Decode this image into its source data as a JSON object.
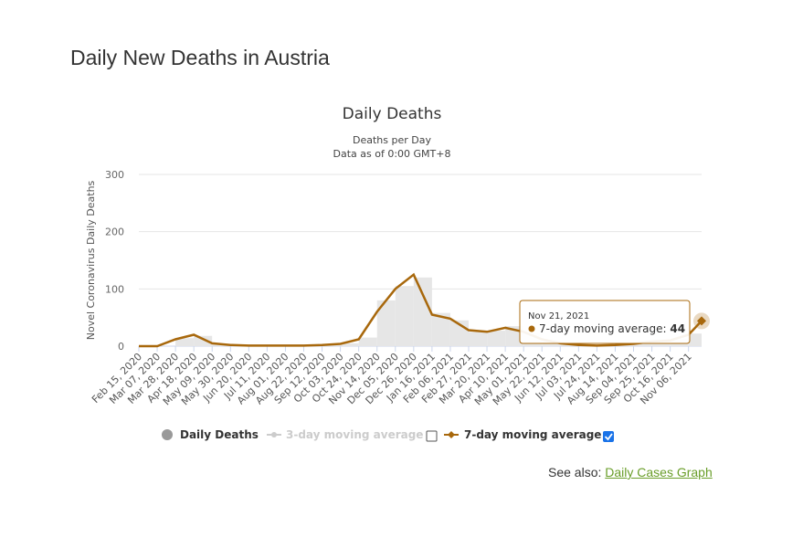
{
  "header": {
    "title": "Daily New Deaths in Austria"
  },
  "chart_data": {
    "type": "bar-line",
    "title": "Daily Deaths",
    "subtitle": [
      "Deaths per Day",
      "Data as of 0:00 GMT+8"
    ],
    "y_label": "Novel Coronavirus Daily Deaths",
    "x": [
      "Feb 15, 2020",
      "Mar 07, 2020",
      "Mar 28, 2020",
      "Apr 18, 2020",
      "May 09, 2020",
      "May 30, 2020",
      "Jun 20, 2020",
      "Jul 11, 2020",
      "Aug 01, 2020",
      "Aug 22, 2020",
      "Sep 12, 2020",
      "Oct 03, 2020",
      "Oct 24, 2020",
      "Nov 14, 2020",
      "Dec 05, 2020",
      "Dec 26, 2020",
      "Jan 16, 2021",
      "Feb 06, 2021",
      "Feb 27, 2021",
      "Mar 20, 2021",
      "Apr 10, 2021",
      "May 01, 2021",
      "May 22, 2021",
      "Jun 12, 2021",
      "Jul 03, 2021",
      "Jul 24, 2021",
      "Aug 14, 2021",
      "Sep 04, 2021",
      "Sep 25, 2021",
      "Oct 16, 2021",
      "Nov 06, 2021",
      "Nov 21, 2021"
    ],
    "xticks": [
      "Feb 15, 2020",
      "Mar 07, 2020",
      "Mar 28, 2020",
      "Apr 18, 2020",
      "May 09, 2020",
      "May 30, 2020",
      "Jun 20, 2020",
      "Jul 11, 2020",
      "Aug 01, 2020",
      "Aug 22, 2020",
      "Sep 12, 2020",
      "Oct 03, 2020",
      "Oct 24, 2020",
      "Nov 14, 2020",
      "Dec 05, 2020",
      "Dec 26, 2020",
      "Jan 16, 2021",
      "Feb 06, 2021",
      "Feb 27, 2021",
      "Mar 20, 2021",
      "Apr 10, 2021",
      "May 01, 2021",
      "May 22, 2021",
      "Jun 12, 2021",
      "Jul 03, 2021",
      "Jul 24, 2021",
      "Aug 14, 2021",
      "Sep 04, 2021",
      "Sep 25, 2021",
      "Oct 16, 2021",
      "Nov 06, 2021"
    ],
    "ylim": [
      0,
      300
    ],
    "yticks": [
      0,
      100,
      200,
      300
    ],
    "grid": true,
    "series": [
      {
        "name": "Daily Deaths",
        "color": "#e6e6e6",
        "values": [
          0,
          0,
          14,
          18,
          4,
          1,
          1,
          1,
          1,
          1,
          2,
          5,
          15,
          80,
          105,
          120,
          58,
          45,
          25,
          27,
          35,
          22,
          10,
          4,
          2,
          1,
          2,
          5,
          9,
          12,
          22,
          48
        ]
      },
      {
        "name": "7-day moving average",
        "color": "#a8680c",
        "values": [
          0,
          0,
          12,
          20,
          5,
          2,
          1,
          1,
          1,
          1,
          2,
          4,
          12,
          60,
          100,
          125,
          55,
          48,
          28,
          25,
          32,
          25,
          12,
          5,
          2,
          1,
          2,
          4,
          8,
          10,
          20,
          44
        ]
      }
    ],
    "hidden_series": [
      "3-day moving average"
    ],
    "tooltip_index": 31
  },
  "see_also": {
    "label": "See also:",
    "link": "Daily Cases Graph"
  }
}
